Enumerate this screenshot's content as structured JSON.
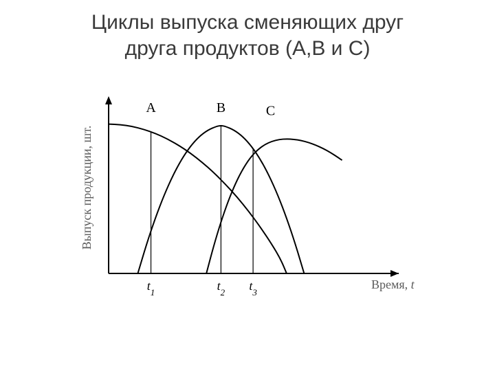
{
  "title": {
    "line1": "Циклы выпуска сменяющих друг",
    "line2": "друга продуктов (А,В и С)",
    "fontsize": 30,
    "color": "#3a3a3a"
  },
  "chart": {
    "type": "line",
    "background_color": "#ffffff",
    "axis_color": "#000000",
    "stroke_color": "#000000",
    "stroke_width": 2,
    "axis_label_color": "#5b5b5b",
    "x_axis": {
      "label": "Время,",
      "label_var": "t",
      "arrow": true,
      "range": [
        0,
        9
      ]
    },
    "y_axis": {
      "label": "Выпуск продукции, шт.",
      "arrow": true,
      "range": [
        0,
        1.15
      ]
    },
    "ticks": [
      {
        "key": "t1",
        "var": "t",
        "sub": "1",
        "x": 1.45
      },
      {
        "key": "t2",
        "var": "t",
        "sub": "2",
        "x": 3.85
      },
      {
        "key": "t3",
        "var": "t",
        "sub": "3",
        "x": 4.95
      }
    ],
    "series": [
      {
        "name": "A",
        "label": "A",
        "label_x": 1.45,
        "label_y": 1.08,
        "points": [
          [
            0.0,
            1.0
          ],
          [
            0.4,
            0.996
          ],
          [
            0.8,
            0.985
          ],
          [
            1.2,
            0.965
          ],
          [
            1.6,
            0.938
          ],
          [
            2.0,
            0.902
          ],
          [
            2.4,
            0.858
          ],
          [
            2.8,
            0.806
          ],
          [
            3.2,
            0.745
          ],
          [
            3.6,
            0.676
          ],
          [
            4.0,
            0.598
          ],
          [
            4.4,
            0.512
          ],
          [
            4.8,
            0.416
          ],
          [
            5.2,
            0.31
          ],
          [
            5.6,
            0.193
          ],
          [
            5.9,
            0.093
          ],
          [
            6.1,
            0.0
          ]
        ]
      },
      {
        "name": "B",
        "label": "B",
        "label_x": 3.85,
        "label_y": 1.08,
        "points": [
          [
            1.0,
            0.0
          ],
          [
            1.3,
            0.196
          ],
          [
            1.6,
            0.371
          ],
          [
            1.9,
            0.524
          ],
          [
            2.2,
            0.655
          ],
          [
            2.5,
            0.764
          ],
          [
            2.8,
            0.851
          ],
          [
            3.1,
            0.916
          ],
          [
            3.4,
            0.96
          ],
          [
            3.7,
            0.985
          ],
          [
            3.85,
            0.99
          ],
          [
            4.0,
            0.985
          ],
          [
            4.3,
            0.96
          ],
          [
            4.6,
            0.916
          ],
          [
            4.9,
            0.851
          ],
          [
            5.2,
            0.764
          ],
          [
            5.5,
            0.655
          ],
          [
            5.8,
            0.524
          ],
          [
            6.1,
            0.371
          ],
          [
            6.4,
            0.196
          ],
          [
            6.7,
            0.0
          ]
        ]
      },
      {
        "name": "C",
        "label": "C",
        "label_x": 5.55,
        "label_y": 1.06,
        "points": [
          [
            3.35,
            0.0
          ],
          [
            3.6,
            0.184
          ],
          [
            3.85,
            0.346
          ],
          [
            4.1,
            0.486
          ],
          [
            4.35,
            0.604
          ],
          [
            4.6,
            0.7
          ],
          [
            4.85,
            0.774
          ],
          [
            5.1,
            0.827
          ],
          [
            5.35,
            0.863
          ],
          [
            5.6,
            0.885
          ],
          [
            5.85,
            0.897
          ],
          [
            6.1,
            0.901
          ],
          [
            6.35,
            0.898
          ],
          [
            6.6,
            0.89
          ],
          [
            6.85,
            0.877
          ],
          [
            7.1,
            0.859
          ],
          [
            7.35,
            0.837
          ],
          [
            7.6,
            0.81
          ],
          [
            7.85,
            0.778
          ],
          [
            8.0,
            0.758
          ]
        ]
      }
    ],
    "series_label_fontsize": 20,
    "tick_label_fontsize": 18,
    "axis_label_fontsize": 18
  }
}
